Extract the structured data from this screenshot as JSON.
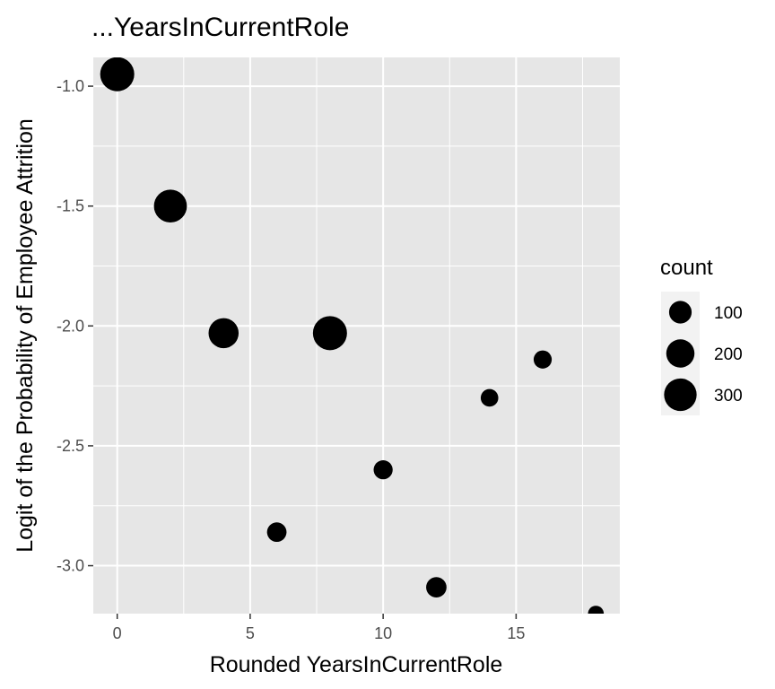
{
  "chart_data": {
    "type": "scatter",
    "title": "...YearsInCurrentRole",
    "xlabel": "Rounded YearsInCurrentRole",
    "ylabel": "Logit of the Probability of Employee Attrition",
    "xlim": [
      -0.9,
      18.9
    ],
    "ylim": [
      -3.2,
      -0.88
    ],
    "x_ticks": [
      0,
      5,
      10,
      15
    ],
    "x_tick_labels": [
      "0",
      "5",
      "10",
      "15"
    ],
    "y_ticks": [
      -1.0,
      -1.5,
      -2.0,
      -2.5,
      -3.0
    ],
    "y_tick_labels": [
      "-1.0",
      "-1.5",
      "-2.0",
      "-2.5",
      "-3.0"
    ],
    "grid": true,
    "legend_position": "right",
    "points": [
      {
        "x": 0,
        "y": -0.95,
        "count": 340
      },
      {
        "x": 2,
        "y": -1.5,
        "count": 310
      },
      {
        "x": 4,
        "y": -2.03,
        "count": 240
      },
      {
        "x": 6,
        "y": -2.86,
        "count": 60
      },
      {
        "x": 8,
        "y": -2.03,
        "count": 340
      },
      {
        "x": 10,
        "y": -2.6,
        "count": 55
      },
      {
        "x": 12,
        "y": -3.09,
        "count": 70
      },
      {
        "x": 14,
        "y": -2.3,
        "count": 40
      },
      {
        "x": 16,
        "y": -2.14,
        "count": 45
      },
      {
        "x": 18,
        "y": -3.2,
        "count": 25
      }
    ],
    "size_legend": {
      "title": "count",
      "entries": [
        {
          "label": "100",
          "value": 100
        },
        {
          "label": "200",
          "value": 200
        },
        {
          "label": "300",
          "value": 300
        }
      ]
    },
    "colors": {
      "panel": "#e6e6e6",
      "grid": "#ffffff",
      "point": "#000000"
    }
  }
}
